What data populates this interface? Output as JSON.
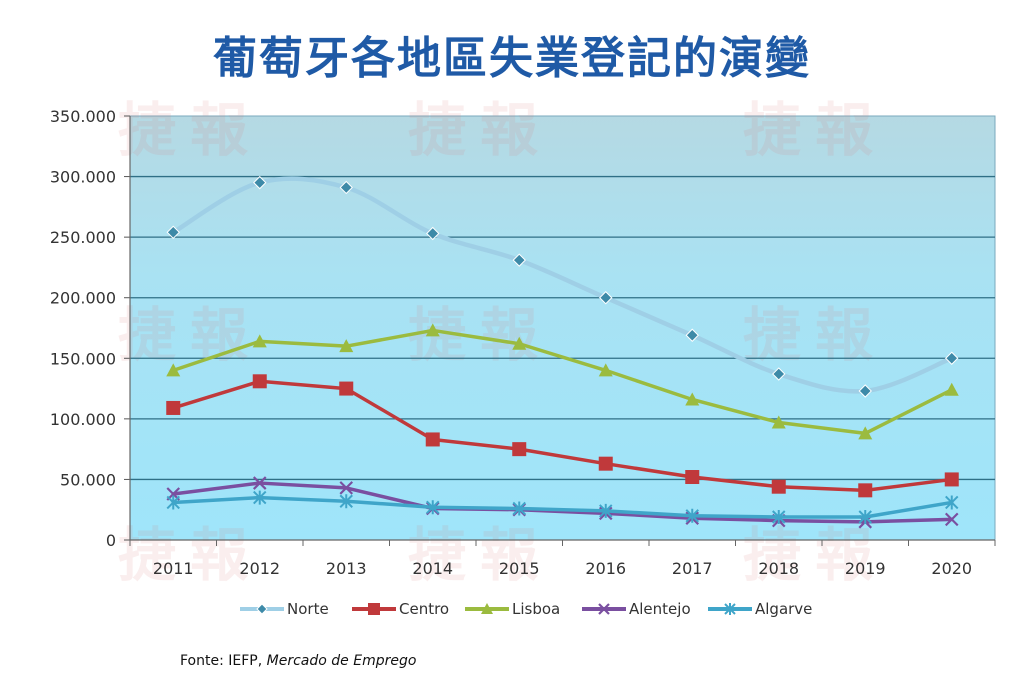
{
  "chart_data": {
    "type": "line",
    "title": "葡萄牙各地區失業登記的演變",
    "x": [
      "2011",
      "2012",
      "2013",
      "2014",
      "2015",
      "2016",
      "2017",
      "2018",
      "2019",
      "2020"
    ],
    "yticks": [
      "0",
      "50.000",
      "100.000",
      "150.000",
      "200.000",
      "250.000",
      "300.000",
      "350.000"
    ],
    "ylim": [
      0,
      350000
    ],
    "grid": true,
    "legend_position": "bottom",
    "series": [
      {
        "name": "Norte",
        "color": "#9fcfe6",
        "marker": "diamond",
        "smooth": true,
        "values": [
          254000,
          295000,
          291000,
          253000,
          231000,
          200000,
          169000,
          137000,
          123000,
          150000
        ]
      },
      {
        "name": "Centro",
        "color": "#c0393b",
        "marker": "square",
        "values": [
          109000,
          131000,
          125000,
          83000,
          75000,
          63000,
          52000,
          44000,
          41000,
          50000
        ]
      },
      {
        "name": "Lisboa",
        "color": "#9bbb3f",
        "marker": "triangle",
        "values": [
          140000,
          164000,
          160000,
          173000,
          162000,
          140000,
          116000,
          97000,
          88000,
          124000
        ]
      },
      {
        "name": "Alentejo",
        "color": "#7a4fa0",
        "marker": "x",
        "values": [
          38000,
          47000,
          43000,
          26000,
          25000,
          22000,
          18000,
          16000,
          15000,
          17000
        ]
      },
      {
        "name": "Algarve",
        "color": "#3fa5c9",
        "marker": "star",
        "values": [
          31000,
          35000,
          32000,
          27000,
          26000,
          24000,
          20000,
          19000,
          19000,
          31000
        ]
      }
    ]
  },
  "watermark": "捷報",
  "source": {
    "prefix": "Fonte: IEFP, ",
    "italic": "Mercado de Emprego"
  }
}
